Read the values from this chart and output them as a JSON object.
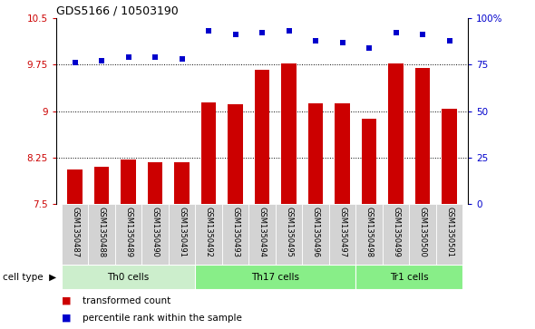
{
  "title": "GDS5166 / 10503190",
  "samples": [
    "GSM1350487",
    "GSM1350488",
    "GSM1350489",
    "GSM1350490",
    "GSM1350491",
    "GSM1350492",
    "GSM1350493",
    "GSM1350494",
    "GSM1350495",
    "GSM1350496",
    "GSM1350497",
    "GSM1350498",
    "GSM1350499",
    "GSM1350500",
    "GSM1350501"
  ],
  "bar_values": [
    8.05,
    8.1,
    8.22,
    8.17,
    8.18,
    9.14,
    9.11,
    9.67,
    9.77,
    9.12,
    9.12,
    8.88,
    9.77,
    9.69,
    9.04
  ],
  "blue_values": [
    76,
    77,
    79,
    79,
    78,
    93,
    91,
    92,
    93,
    88,
    87,
    84,
    92,
    91,
    88
  ],
  "bar_color": "#cc0000",
  "blue_color": "#0000cc",
  "cell_types": [
    {
      "label": "Th0 cells",
      "start": 0,
      "end": 5,
      "color": "#cceecc"
    },
    {
      "label": "Th17 cells",
      "start": 5,
      "end": 11,
      "color": "#88ee88"
    },
    {
      "label": "Tr1 cells",
      "start": 11,
      "end": 15,
      "color": "#88ee88"
    }
  ],
  "ylim_left": [
    7.5,
    10.5
  ],
  "yticks_left": [
    7.5,
    8.25,
    9.0,
    9.75,
    10.5
  ],
  "ytick_labels_left": [
    "7.5",
    "8.25",
    "9",
    "9.75",
    "10.5"
  ],
  "ylim_right": [
    0,
    100
  ],
  "yticks_right": [
    0,
    25,
    50,
    75,
    100
  ],
  "ytick_labels_right": [
    "0",
    "25",
    "50",
    "75",
    "100%"
  ],
  "grid_vals": [
    8.25,
    9.0,
    9.75
  ],
  "legend_items": [
    {
      "label": "transformed count",
      "color": "#cc0000"
    },
    {
      "label": "percentile rank within the sample",
      "color": "#0000cc"
    }
  ],
  "cell_type_label": "cell type"
}
